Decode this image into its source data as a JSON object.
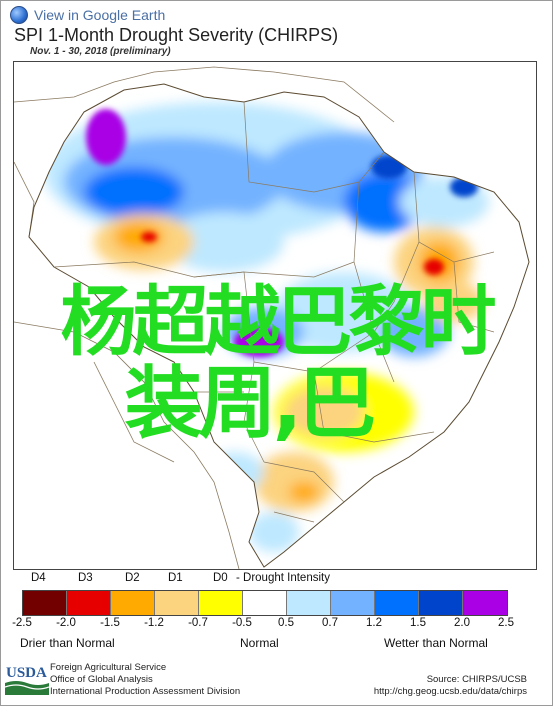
{
  "header": {
    "view_link": "View in Google Earth",
    "title": "SPI 1-Month Drought Severity (CHIRPS)",
    "subtitle": "Nov. 1 - 30, 2018 (preliminary)"
  },
  "overlay": {
    "line1": "杨超越巴黎时",
    "line2": "装周,巴"
  },
  "legend": {
    "categories": [
      "D4",
      "D3",
      "D2",
      "D1",
      "D0"
    ],
    "category_suffix": "- Drought Intensity",
    "colors": [
      "#730000",
      "#e60000",
      "#ffaa00",
      "#fcd37f",
      "#ffff00",
      "#ffffff",
      "#bee8ff",
      "#73b2ff",
      "#0070ff",
      "#0044cc",
      "#a900e6"
    ],
    "ticks": [
      "-2.5",
      "-2.0",
      "-1.5",
      "-1.2",
      "-0.7",
      "-0.5",
      "0.5",
      "0.7",
      "1.2",
      "1.5",
      "2.0",
      "2.5"
    ],
    "drier": "Drier than Normal",
    "normal": "Normal",
    "wetter": "Wetter than Normal"
  },
  "footer": {
    "agency_line1": "Foreign Agricultural Service",
    "agency_line2": "Office of Global Analysis",
    "agency_line3": "International Production Assessment Division",
    "source": "Source: CHIRPS/UCSB",
    "url": "http://chg.geog.ucsb.edu/data/chirps",
    "logo_text": "USDA"
  },
  "map_colors": {
    "land": "#ffffff",
    "border": "#7a6a50",
    "wet_light": "#bee8ff",
    "wet_mid": "#73b2ff",
    "wet_strong": "#0070ff",
    "wet_deep": "#0044cc",
    "wet_extreme": "#a900e6",
    "dry_d0": "#ffff00",
    "dry_d1": "#fcd37f",
    "dry_d2": "#ffaa00",
    "dry_d3": "#e60000",
    "dry_d4": "#730000",
    "overlay_text": "#22dd22"
  }
}
